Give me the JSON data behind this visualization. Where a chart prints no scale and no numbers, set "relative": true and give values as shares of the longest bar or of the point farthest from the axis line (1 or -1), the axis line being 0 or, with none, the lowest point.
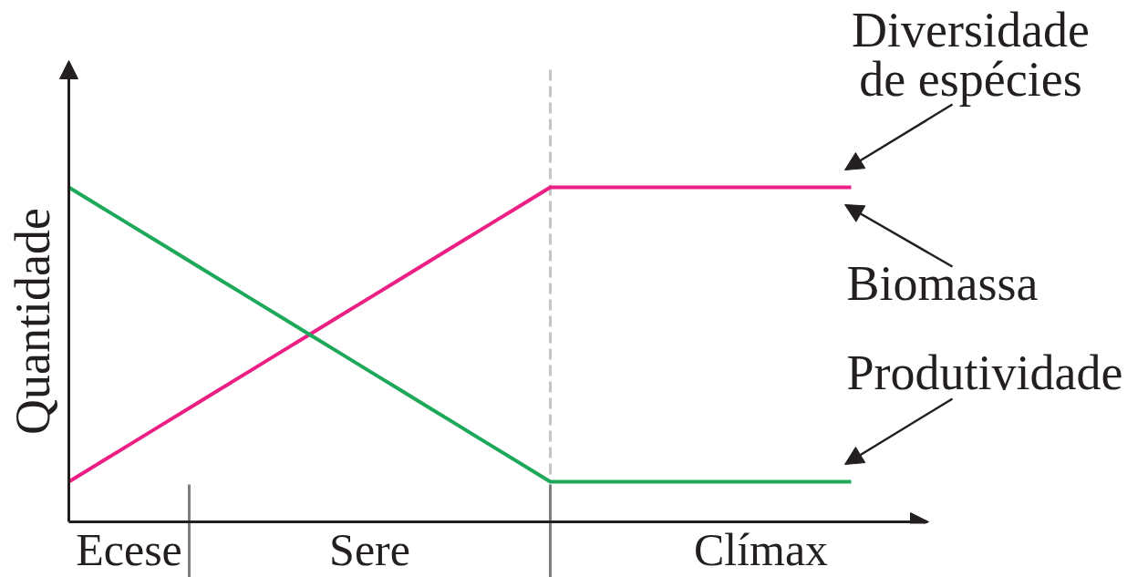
{
  "chart_data": {
    "type": "line",
    "relative": true,
    "ylabel": "Quantidade",
    "categories": [
      null,
      null,
      "Ecese",
      null,
      null,
      null,
      null,
      null,
      null,
      null,
      "Sere",
      null,
      null,
      null,
      null,
      null,
      null,
      null,
      null,
      null,
      null,
      null,
      null,
      "Clímax",
      null,
      null,
      null
    ],
    "series": [
      {
        "name": "Diversidade de espécies",
        "color": "#ec1f84",
        "values": [
          0.12,
          0.175,
          0.23,
          0.285,
          0.34,
          0.395,
          0.45,
          0.505,
          0.56,
          0.615,
          0.67,
          0.725,
          0.78,
          0.835,
          0.89,
          0.945,
          1,
          1,
          1,
          1,
          1,
          1,
          1,
          1,
          1,
          1,
          1
        ]
      },
      {
        "name": "Produtividade",
        "color": "#1ea95a",
        "values": [
          1,
          0.945,
          0.89,
          0.835,
          0.78,
          0.725,
          0.67,
          0.615,
          0.56,
          0.505,
          0.45,
          0.395,
          0.34,
          0.285,
          0.23,
          0.175,
          0.12,
          0.12,
          0.12,
          0.12,
          0.12,
          0.12,
          0.12,
          0.12,
          0.12,
          0.12,
          0.12
        ]
      }
    ],
    "annotations": [
      "Biomassa"
    ]
  }
}
